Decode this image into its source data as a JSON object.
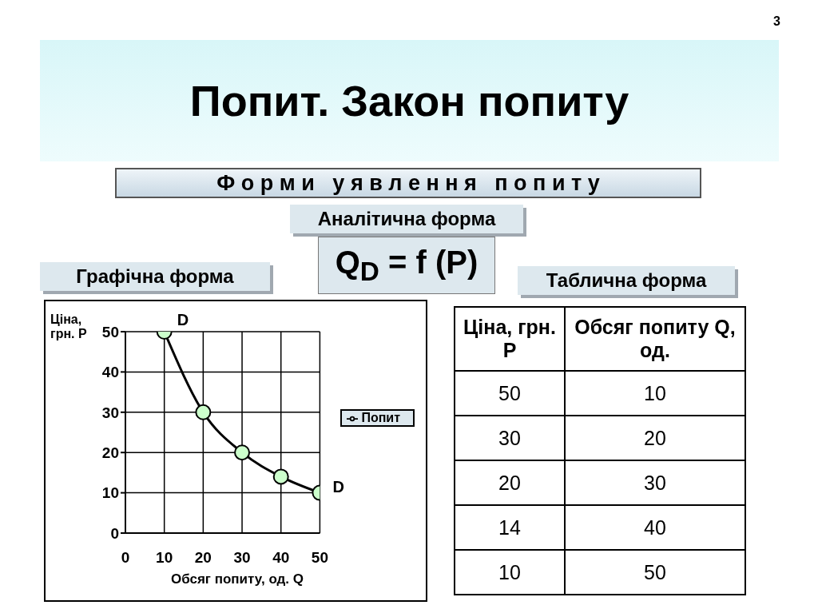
{
  "chart_data": {
    "type": "line",
    "title": "Попит. Закон попиту",
    "subtitle": "Ф о р м и   у я в л е н н я   п о п и т у",
    "xlabel": "Обсяг попиту, од. Q",
    "ylabel": "Ціна, грн. P",
    "x": [
      10,
      20,
      30,
      40,
      50
    ],
    "series": [
      {
        "name": "Попит",
        "color": "#000000",
        "values": [
          50,
          30,
          20,
          14,
          10
        ]
      }
    ],
    "xlim": [
      0,
      50
    ],
    "xticks": [
      0,
      10,
      20,
      30,
      40,
      50
    ],
    "ylim": [
      0,
      50
    ],
    "yticks": [
      0,
      10,
      20,
      30,
      40,
      50
    ],
    "grid": true,
    "legend": "right",
    "marker": "circle",
    "annotations": [
      "Аналітична форма",
      "Q$_{D}$ = f (P)",
      "Графічна форма",
      "Таблична форма",
      "Ціна, грн. P",
      "Обсяг попиту Q, од.",
      {
        "text": "D",
        "x": 10,
        "y": 50
      },
      {
        "text": "D",
        "x": 50,
        "y": 10
      },
      "3",
      "50",
      "10",
      "30",
      "20",
      "20",
      "30",
      "14",
      "40",
      "10",
      "50"
    ]
  }
}
